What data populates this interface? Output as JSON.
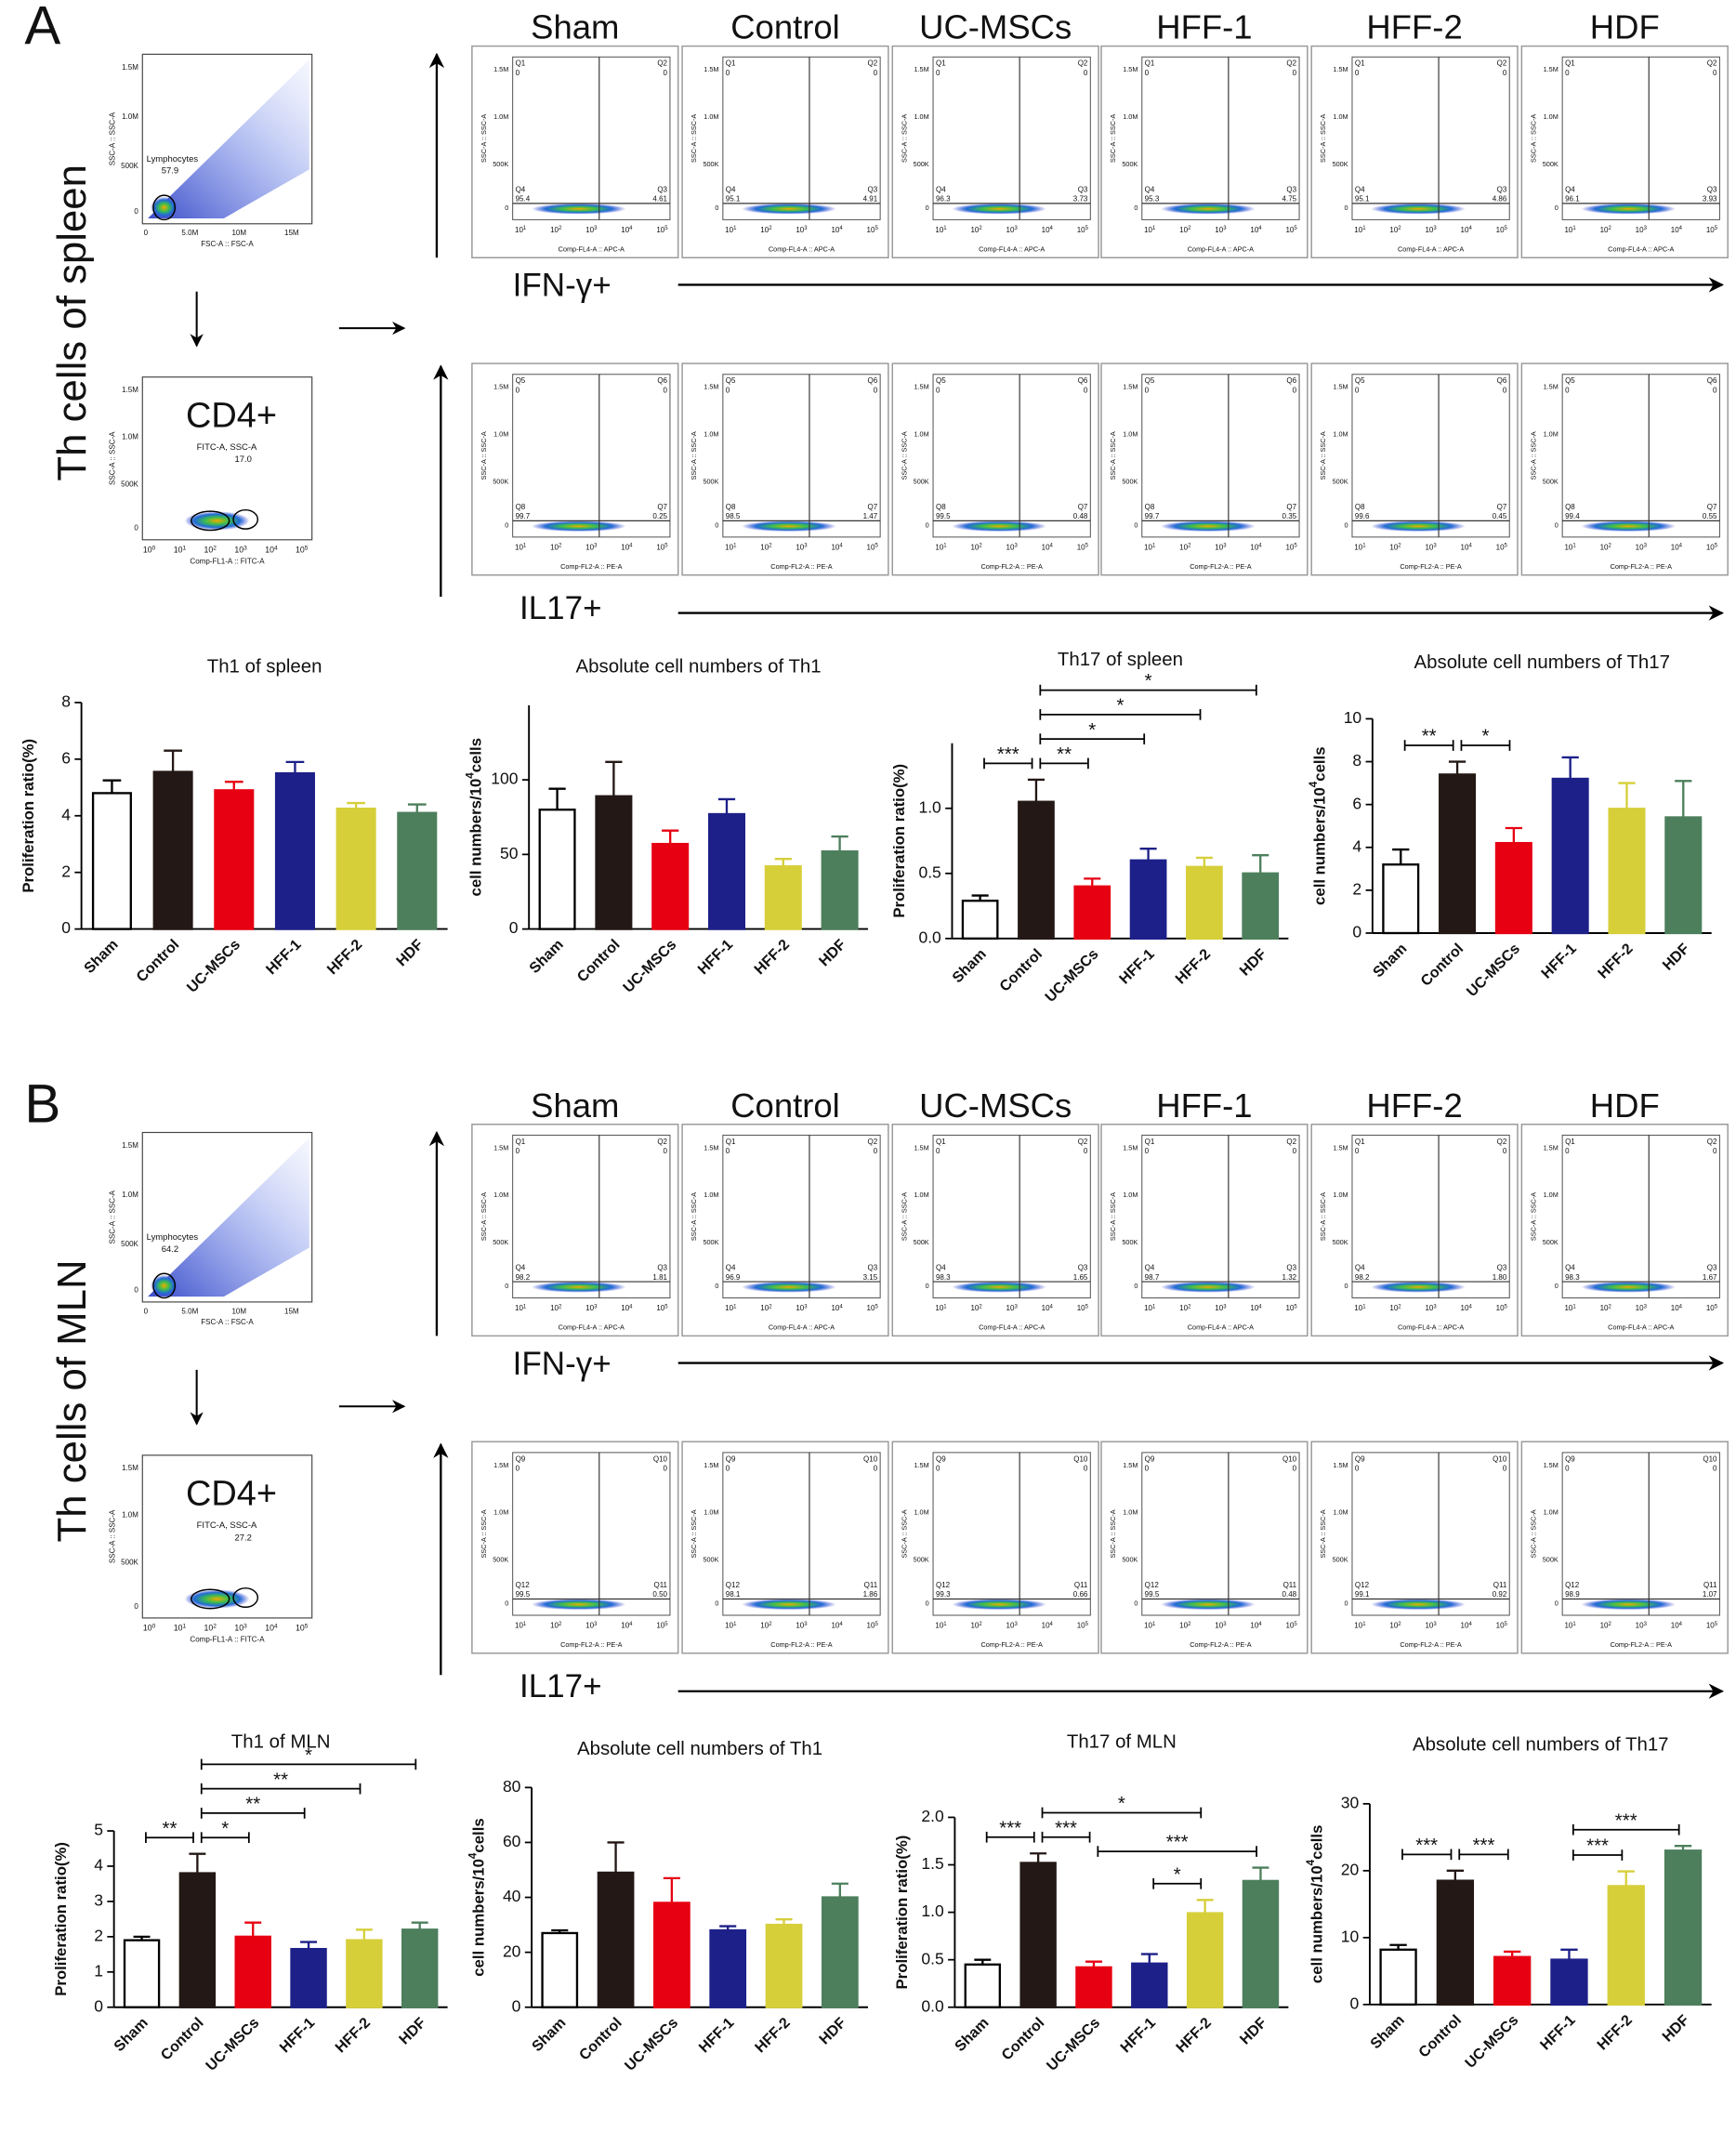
{
  "groups": [
    "Sham",
    "Control",
    "UC-MSCs",
    "HFF-1",
    "HFF-2",
    "HDF"
  ],
  "flow_axes": {
    "scatter_ticks": [
      "1.5M",
      "1.0M",
      "500K",
      "0"
    ],
    "fsc_ticks": [
      "0",
      "5.0M",
      "10M",
      "15M"
    ],
    "log_base": "10",
    "gate_exponents": [
      "0",
      "1",
      "2",
      "3",
      "4",
      "5"
    ],
    "quad_exponents": [
      "1",
      "2",
      "3",
      "4",
      "5"
    ],
    "ssc_label": "SSC-A :: SSC-A",
    "fsc_label": "FSC-A :: FSC-A",
    "fitc_label": "Comp-FL1-A :: FITC-A",
    "apc_label": "Comp-FL4-A :: APC-A",
    "pe_label": "Comp-FL2-A :: PE-A",
    "gate_name": "Lymphocytes",
    "cd4_gate": "FITC-A, SSC-A",
    "cd4_title": "CD4+"
  },
  "panels": [
    {
      "letter": "A",
      "row_title": "Th cells of spleen",
      "lymph_percent": "57.9",
      "cd4_percent": "17.0",
      "ifn_label": "IFN-γ+",
      "il17_label": "IL17+",
      "ifn_row": {
        "quadrants": [
          "Q1",
          "Q2",
          "Q3",
          "Q4"
        ],
        "values": [
          [
            "0",
            "0",
            "4.61",
            "95.4"
          ],
          [
            "0",
            "0",
            "4.91",
            "95.1"
          ],
          [
            "0",
            "0",
            "3.73",
            "96.3"
          ],
          [
            "0",
            "0",
            "4.75",
            "95.3"
          ],
          [
            "0",
            "0",
            "4.86",
            "95.1"
          ],
          [
            "0",
            "0",
            "3.93",
            "96.1"
          ]
        ]
      },
      "il17_row": {
        "quadrants": [
          "Q5",
          "Q6",
          "Q7",
          "Q8"
        ],
        "values": [
          [
            "0",
            "0",
            "0.25",
            "99.7"
          ],
          [
            "0",
            "0",
            "1.47",
            "98.5"
          ],
          [
            "0",
            "0",
            "0.48",
            "99.5"
          ],
          [
            "0",
            "0",
            "0.35",
            "99.7"
          ],
          [
            "0",
            "0",
            "0.45",
            "99.6"
          ],
          [
            "0",
            "0",
            "0.55",
            "99.4"
          ]
        ]
      }
    },
    {
      "letter": "B",
      "row_title": "Th cells of MLN",
      "lymph_percent": "64.2",
      "cd4_percent": "27.2",
      "ifn_label": "IFN-γ+",
      "il17_label": "IL17+",
      "ifn_row": {
        "quadrants": [
          "Q1",
          "Q2",
          "Q3",
          "Q4"
        ],
        "values": [
          [
            "0",
            "0",
            "1.81",
            "98.2"
          ],
          [
            "0",
            "0",
            "3.15",
            "96.9"
          ],
          [
            "0",
            "0",
            "1.65",
            "98.3"
          ],
          [
            "0",
            "0",
            "1.32",
            "98.7"
          ],
          [
            "0",
            "0",
            "1.80",
            "98.2"
          ],
          [
            "0",
            "0",
            "1.67",
            "98.3"
          ]
        ]
      },
      "il17_row": {
        "quadrants": [
          "Q9",
          "Q10",
          "Q11",
          "Q12"
        ],
        "values": [
          [
            "0",
            "0",
            "0.50",
            "99.5"
          ],
          [
            "0",
            "0",
            "1.86",
            "98.1"
          ],
          [
            "0",
            "0",
            "0.66",
            "99.3"
          ],
          [
            "0",
            "0",
            "0.48",
            "99.5"
          ],
          [
            "0",
            "0",
            "0.92",
            "99.1"
          ],
          [
            "0",
            "0",
            "1.07",
            "98.9"
          ]
        ]
      }
    }
  ],
  "chart_data": [
    {
      "type": "bar",
      "title": "Th1  of  spleen",
      "ylabel": "Proliferation ratio(%)",
      "categories": [
        "Sham",
        "Control",
        "UC-MSCs",
        "HFF-1",
        "HFF-2",
        "HDF"
      ],
      "values": [
        4.8,
        5.55,
        4.9,
        5.5,
        4.25,
        4.1
      ],
      "errors": [
        0.45,
        0.75,
        0.3,
        0.4,
        0.2,
        0.3
      ],
      "colors": [
        "#ffffff",
        "#231815",
        "#e60012",
        "#1d2088",
        "#d6cf3a",
        "#4d7f5c"
      ],
      "edgecolor": "#000000",
      "ylim": [
        0,
        8
      ],
      "yticks": [
        0,
        2,
        4,
        6,
        8
      ],
      "significance": []
    },
    {
      "type": "bar",
      "title": "Absolute cell numbers of Th1",
      "ylabel": "cell numbers/10",
      "ylabel_sup": "4",
      "ylabel_tail": "cells",
      "categories": [
        "Sham",
        "Control",
        "UC-MSCs",
        "HFF-1",
        "HFF-2",
        "HDF"
      ],
      "values": [
        80,
        89,
        57,
        77,
        42,
        52
      ],
      "errors": [
        14,
        23,
        9,
        10,
        5,
        10
      ],
      "colors": [
        "#ffffff",
        "#231815",
        "#e60012",
        "#1d2088",
        "#d6cf3a",
        "#4d7f5c"
      ],
      "edgecolor": "#000000",
      "ylim": [
        0,
        150
      ],
      "yticks": [
        0,
        50,
        100
      ],
      "significance": []
    },
    {
      "type": "bar",
      "title": "Th17  of  spleen",
      "ylabel": "Proliferation ratio(%)",
      "categories": [
        "Sham",
        "Control",
        "UC-MSCs",
        "HFF-1",
        "HFF-2",
        "HDF"
      ],
      "values": [
        0.29,
        1.05,
        0.4,
        0.6,
        0.55,
        0.5
      ],
      "errors": [
        0.04,
        0.17,
        0.06,
        0.09,
        0.07,
        0.14
      ],
      "colors": [
        "#ffffff",
        "#231815",
        "#e60012",
        "#1d2088",
        "#d6cf3a",
        "#4d7f5c"
      ],
      "edgecolor": "#000000",
      "ylim": [
        0,
        1.5
      ],
      "yticks": [
        {
          "value": 0,
          "label": "0.0"
        },
        0.5,
        {
          "value": 1,
          "label": "1.0"
        }
      ],
      "significance": [
        {
          "from": "Sham",
          "to": "Control",
          "label": "***"
        },
        {
          "from": "Control",
          "to": "UC-MSCs",
          "label": "**"
        },
        {
          "from": "Control",
          "to": "HFF-1",
          "label": "*"
        },
        {
          "from": "Control",
          "to": "HFF-2",
          "label": "*"
        },
        {
          "from": "Control",
          "to": "HDF",
          "label": "*"
        }
      ]
    },
    {
      "type": "bar",
      "title": "Absolute cell numbers of Th17",
      "ylabel": "cell numbers/10",
      "ylabel_sup": "4",
      "ylabel_tail": "cells",
      "categories": [
        "Sham",
        "Control",
        "UC-MSCs",
        "HFF-1",
        "HFF-2",
        "HDF"
      ],
      "values": [
        3.2,
        7.4,
        4.2,
        7.2,
        5.8,
        5.4
      ],
      "errors": [
        0.7,
        0.6,
        0.7,
        1.0,
        1.2,
        1.7
      ],
      "colors": [
        "#ffffff",
        "#231815",
        "#e60012",
        "#1d2088",
        "#d6cf3a",
        "#4d7f5c"
      ],
      "edgecolor": "#000000",
      "ylim": [
        0,
        10
      ],
      "yticks": [
        0,
        2,
        4,
        6,
        8,
        10
      ],
      "significance": [
        {
          "from": "Sham",
          "to": "Control",
          "label": "**"
        },
        {
          "from": "Control",
          "to": "UC-MSCs",
          "label": "*"
        }
      ]
    },
    {
      "type": "bar",
      "title": "Th1 of MLN",
      "ylabel": "Proliferation ratio(%)",
      "categories": [
        "Sham",
        "Control",
        "UC-MSCs",
        "HFF-1",
        "HFF-2",
        "HDF"
      ],
      "values": [
        1.9,
        3.8,
        2.0,
        1.65,
        1.9,
        2.2
      ],
      "errors": [
        0.1,
        0.55,
        0.4,
        0.2,
        0.3,
        0.2
      ],
      "colors": [
        "#ffffff",
        "#231815",
        "#e60012",
        "#1d2088",
        "#d6cf3a",
        "#4d7f5c"
      ],
      "edgecolor": "#000000",
      "ylim": [
        0,
        5
      ],
      "yticks": [
        0,
        1,
        2,
        3,
        4,
        5
      ],
      "significance": [
        {
          "from": "Sham",
          "to": "Control",
          "label": "**"
        },
        {
          "from": "Control",
          "to": "UC-MSCs",
          "label": "*"
        },
        {
          "from": "Control",
          "to": "HFF-1",
          "label": "**"
        },
        {
          "from": "Control",
          "to": "HFF-2",
          "label": "**"
        },
        {
          "from": "Control",
          "to": "HDF",
          "label": "*"
        }
      ]
    },
    {
      "type": "bar",
      "title": "Absolute cell numbers of Th1",
      "ylabel": "cell numbers/10",
      "ylabel_sup": "4",
      "ylabel_tail": "cells",
      "categories": [
        "Sham",
        "Control",
        "UC-MSCs",
        "HFF-1",
        "HFF-2",
        "HDF"
      ],
      "values": [
        27,
        49,
        38,
        28,
        30,
        40
      ],
      "errors": [
        1,
        11,
        9,
        1.5,
        2,
        5
      ],
      "colors": [
        "#ffffff",
        "#231815",
        "#e60012",
        "#1d2088",
        "#d6cf3a",
        "#4d7f5c"
      ],
      "edgecolor": "#000000",
      "ylim": [
        0,
        80
      ],
      "yticks": [
        0,
        20,
        40,
        60,
        80
      ],
      "significance": []
    },
    {
      "type": "bar",
      "title": "Th17 of MLN",
      "ylabel": "Proliferation ratio(%)",
      "categories": [
        "Sham",
        "Control",
        "UC-MSCs",
        "HFF-1",
        "HFF-2",
        "HDF"
      ],
      "values": [
        0.45,
        1.52,
        0.42,
        0.46,
        0.99,
        1.33
      ],
      "errors": [
        0.05,
        0.1,
        0.06,
        0.1,
        0.14,
        0.14
      ],
      "colors": [
        "#ffffff",
        "#231815",
        "#e60012",
        "#1d2088",
        "#d6cf3a",
        "#4d7f5c"
      ],
      "edgecolor": "#000000",
      "ylim": [
        0,
        2
      ],
      "yticks": [
        {
          "value": 0,
          "label": "0.0"
        },
        0.5,
        {
          "value": 1,
          "label": "1.0"
        },
        1.5,
        {
          "value": 2,
          "label": "2.0"
        }
      ],
      "significance": [
        {
          "from": "Sham",
          "to": "Control",
          "label": "***"
        },
        {
          "from": "Control",
          "to": "UC-MSCs",
          "label": "***"
        },
        {
          "from": "HFF-1",
          "to": "HFF-2",
          "label": "*"
        },
        {
          "from": "UC-MSCs",
          "to": "HDF",
          "label": "***"
        },
        {
          "from": "Control",
          "to": "HFF-2",
          "label": "*"
        }
      ]
    },
    {
      "type": "bar",
      "title": "Absolute cell numbers of Th17",
      "ylabel": "cell numbers/10",
      "ylabel_sup": "4",
      "ylabel_tail": "cells",
      "categories": [
        "Sham",
        "Control",
        "UC-MSCs",
        "HFF-1",
        "HFF-2",
        "HDF"
      ],
      "values": [
        8.2,
        18.5,
        7.1,
        6.7,
        17.7,
        23.0
      ],
      "errors": [
        0.7,
        1.5,
        0.8,
        1.5,
        2.2,
        0.7
      ],
      "colors": [
        "#ffffff",
        "#231815",
        "#e60012",
        "#1d2088",
        "#d6cf3a",
        "#4d7f5c"
      ],
      "edgecolor": "#000000",
      "ylim": [
        0,
        30
      ],
      "yticks": [
        0,
        10,
        20,
        30
      ],
      "significance": [
        {
          "from": "Sham",
          "to": "Control",
          "label": "***"
        },
        {
          "from": "Control",
          "to": "UC-MSCs",
          "label": "***"
        },
        {
          "from": "HFF-1",
          "to": "HFF-2",
          "label": "***"
        },
        {
          "from": "HFF-1",
          "to": "HDF",
          "label": "***"
        }
      ]
    }
  ]
}
